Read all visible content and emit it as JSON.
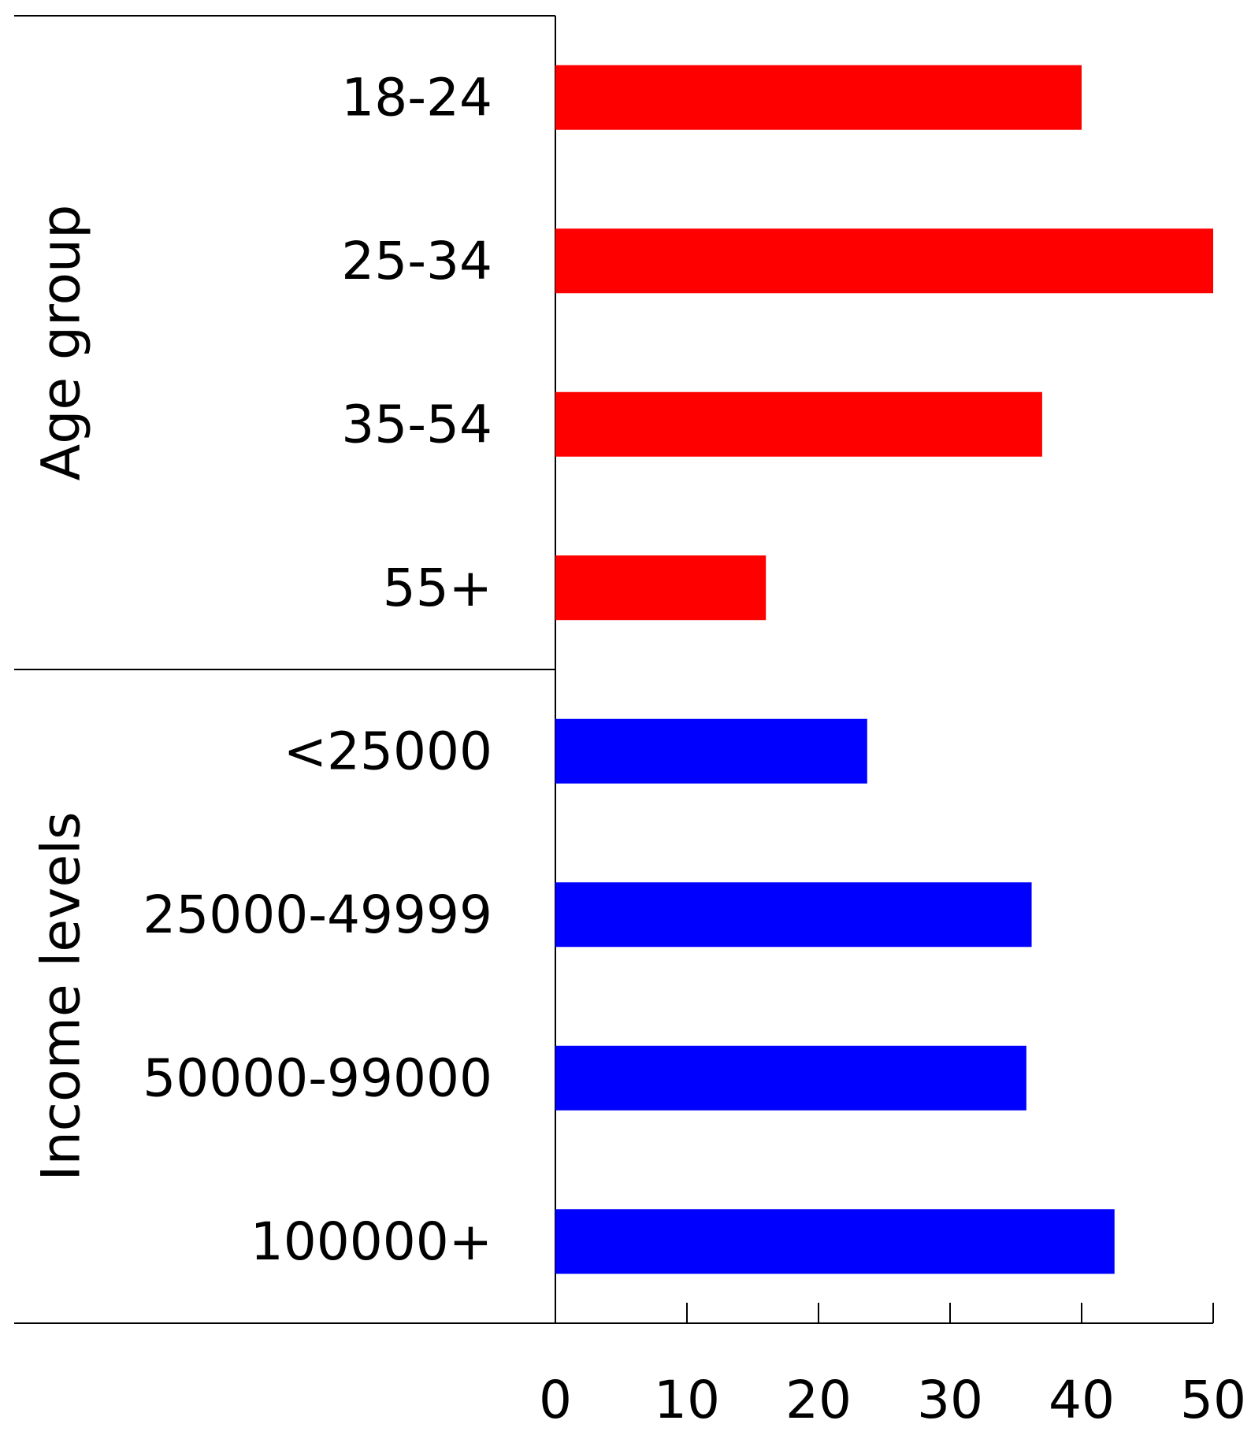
{
  "chart_data": {
    "type": "bar",
    "orientation": "horizontal",
    "title": "",
    "xlabel": "",
    "xlim": [
      0,
      50
    ],
    "xticks": [
      0,
      10,
      20,
      30,
      40,
      50
    ],
    "grid": false,
    "legend": "none",
    "groups": [
      {
        "name": "Age group",
        "color": "#ff0000",
        "categories": [
          "18-24",
          "25-34",
          "35-54",
          "55+"
        ],
        "values": [
          40,
          50,
          37,
          16
        ]
      },
      {
        "name": "Income levels",
        "color": "#0000ff",
        "categories": [
          "<25000",
          "25000-49999",
          "50000-99000",
          "100000+"
        ],
        "values": [
          23.7,
          36.2,
          35.8,
          42.5
        ]
      }
    ]
  }
}
